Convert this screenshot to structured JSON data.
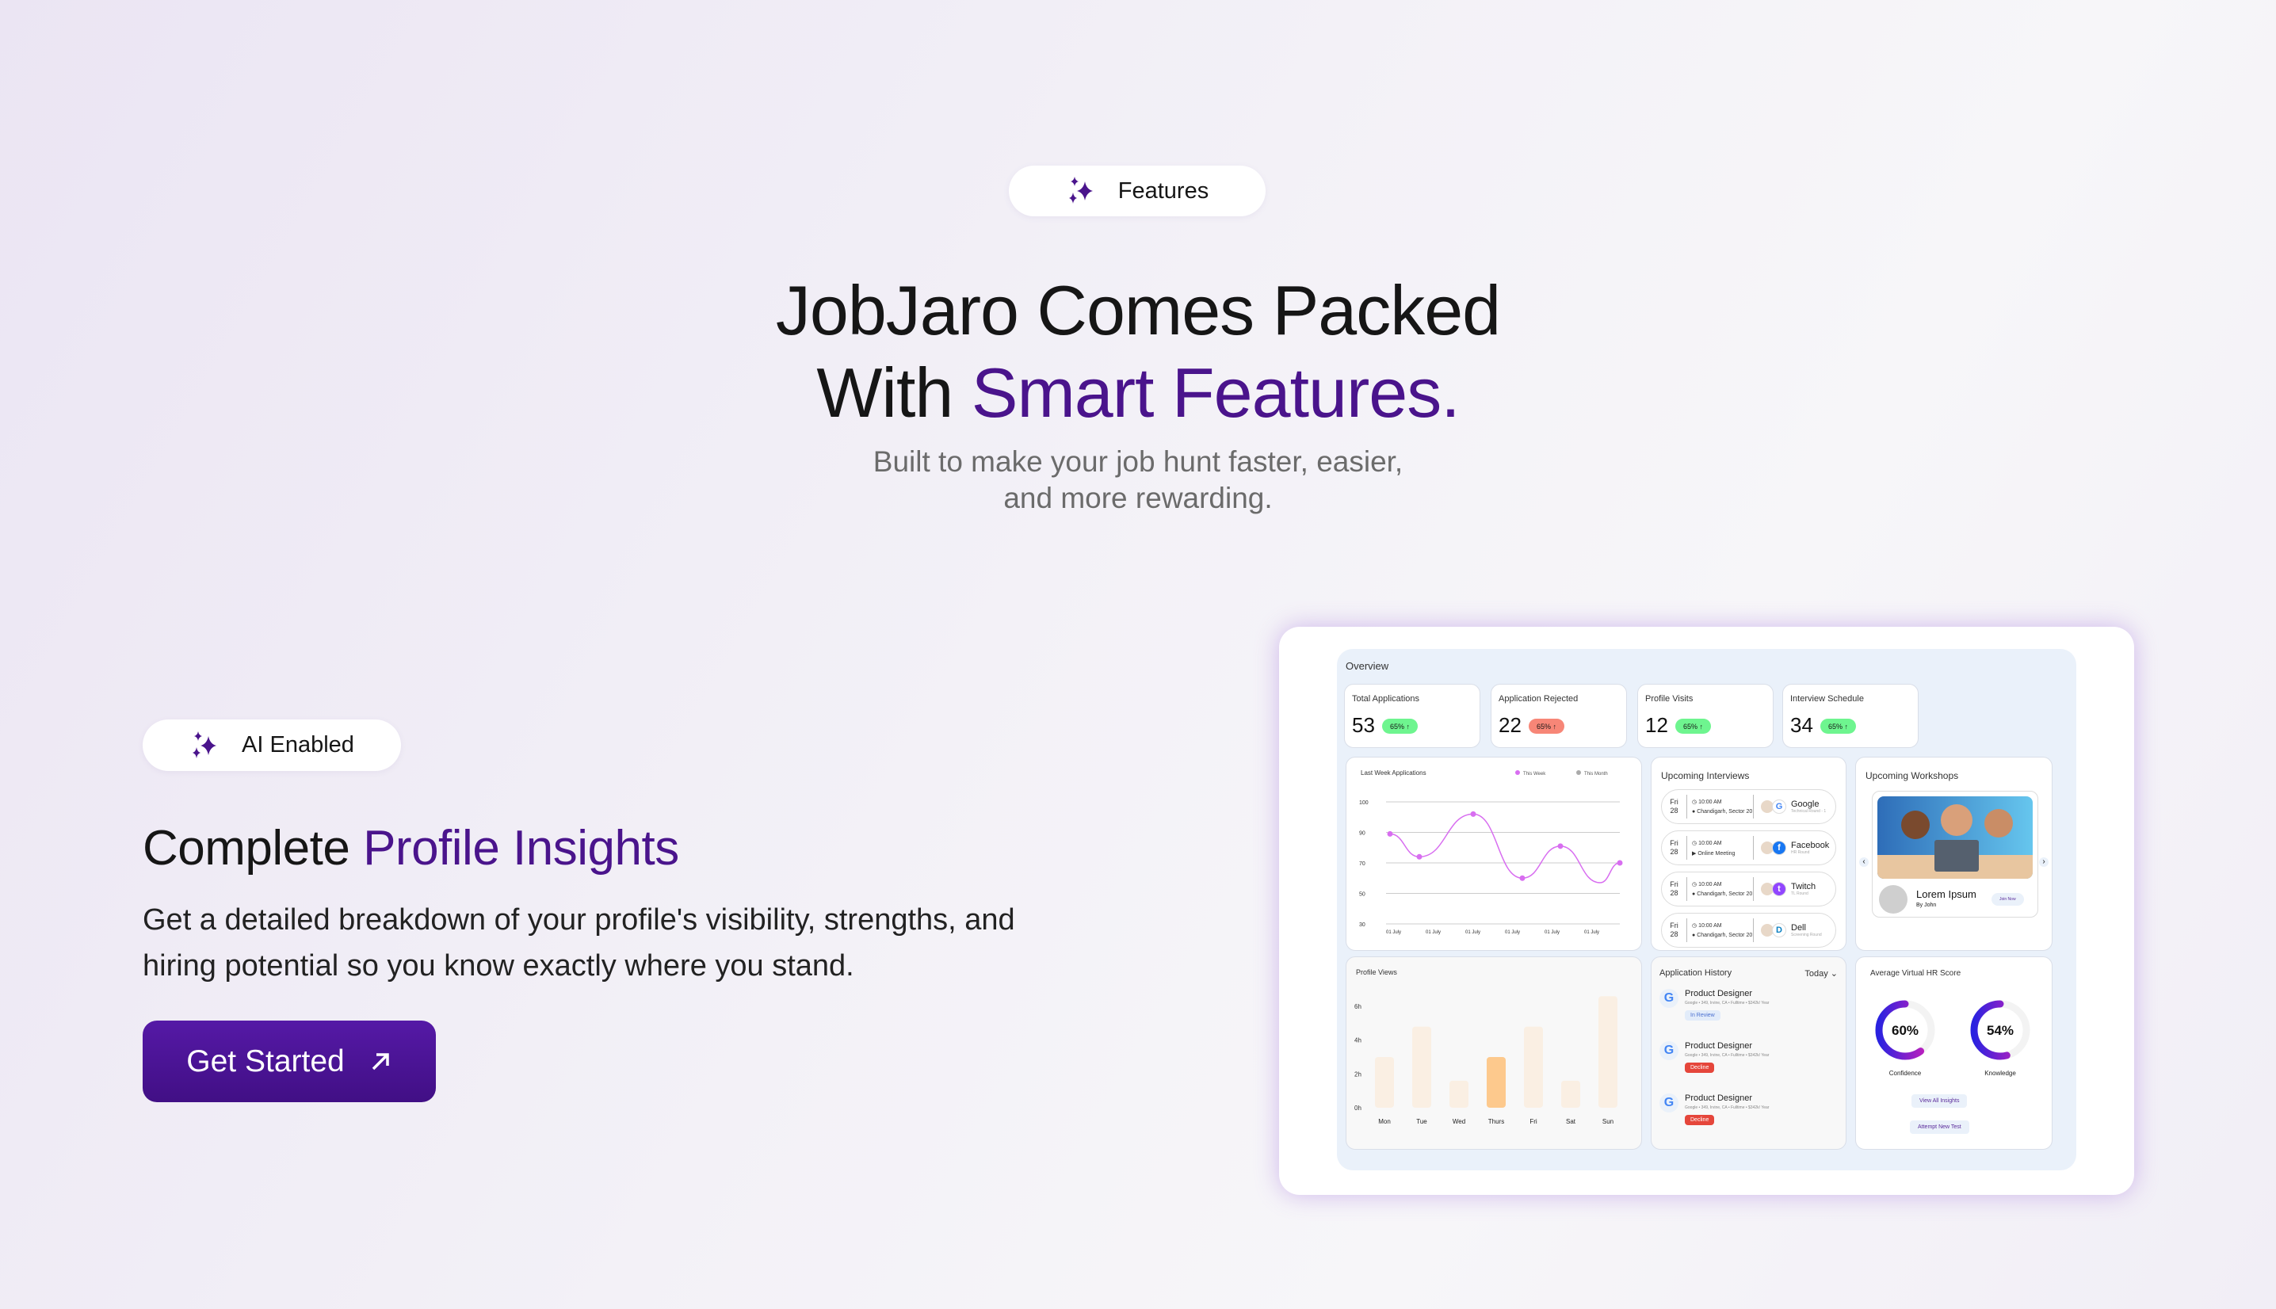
{
  "header": {
    "badge_label": "Features",
    "badge_icon": "sparkles-icon",
    "title_line1": "JobJaro Comes Packed",
    "title_line2_prefix": "With ",
    "title_line2_accent": "Smart Features.",
    "subtitle_line1": "Built to make your job hunt faster, easier,",
    "subtitle_line2": "and more rewarding."
  },
  "feature": {
    "badge_label": "AI Enabled",
    "title_prefix": "Complete ",
    "title_accent": "Profile Insights",
    "description": "Get a detailed breakdown of your profile's visibility, strengths, and hiring potential so you know exactly where you stand.",
    "cta_label": "Get Started",
    "cta_icon": "arrow-up-right-icon"
  },
  "colors": {
    "accent": "#4a148c",
    "up_badge": "#6ef58f",
    "down_badge": "#f78677",
    "line": "#d86ef0",
    "bar": "#faefe3",
    "bar_highlight": "#fdc98d"
  },
  "dashboard": {
    "overview_label": "Overview",
    "stats": [
      {
        "label": "Total Applications",
        "value": "53",
        "change": "65% ↑",
        "tone": "g"
      },
      {
        "label": "Application Rejected",
        "value": "22",
        "change": "65% ↑",
        "tone": "r"
      },
      {
        "label": "Profile Visits",
        "value": "12",
        "change": "65% ↑",
        "tone": "g"
      },
      {
        "label": "Interview Schedule",
        "value": "34",
        "change": "65% ↑",
        "tone": "g"
      }
    ],
    "upcoming_interviews": {
      "title": "Upcoming Interviews",
      "items": [
        {
          "day": "Fri",
          "date": "28",
          "time": "10:00 AM",
          "location": "Chandigarh, Sector 20",
          "company": "Google",
          "round": "Technical Round - 1"
        },
        {
          "day": "Fri",
          "date": "28",
          "time": "10:00 AM",
          "location": "Online Meeting",
          "company": "Facebook",
          "round": "HR Round"
        },
        {
          "day": "Fri",
          "date": "28",
          "time": "10:00 AM",
          "location": "Chandigarh, Sector 20",
          "company": "Twitch",
          "round": "TL Round"
        },
        {
          "day": "Fri",
          "date": "28",
          "time": "10:00 AM",
          "location": "Chandigarh, Sector 20",
          "company": "Dell",
          "round": "Screening Round"
        }
      ]
    },
    "workshops": {
      "title": "Upcoming Workshops",
      "name": "Lorem Ipsum",
      "by": "By John",
      "join_label": "Join Now"
    },
    "application_history": {
      "title": "Application History",
      "filter": "Today",
      "items": [
        {
          "role": "Product Designer",
          "meta": "Google • 349, Irvine, CA • Fulltime • $342k/ Year",
          "status": "In Review",
          "kind": "rev"
        },
        {
          "role": "Product Designer",
          "meta": "Google • 349, Irvine, CA • Fulltime • $342k/ Year",
          "status": "Decline",
          "kind": "dec"
        },
        {
          "role": "Product Designer",
          "meta": "Google • 349, Irvine, CA • Fulltime • $342k/ Year",
          "status": "Decline",
          "kind": "dec"
        }
      ]
    },
    "hr_score": {
      "title": "Average Virtual HR Score",
      "scores": [
        {
          "label": "Confidence",
          "value": 60,
          "text": "60%"
        },
        {
          "label": "Knowledge",
          "value": 54,
          "text": "54%"
        }
      ],
      "view_label": "View All Insights",
      "attempt_label": "Attempt New Test"
    }
  },
  "chart_data": [
    {
      "type": "line",
      "title": "Last Week Applications",
      "legend": [
        "This Week",
        "This Month"
      ],
      "legend_placement": "top-right",
      "y_ticks": [
        "100",
        "90",
        "70",
        "50",
        "30"
      ],
      "x_ticks": [
        "01 July",
        "01 July",
        "01 July",
        "01 July",
        "01 July",
        "01 July"
      ],
      "grid": true,
      "series": [
        {
          "name": "This Week",
          "values": [
            89,
            74,
            96,
            60,
            81,
            57,
            70
          ]
        }
      ]
    },
    {
      "type": "bar",
      "title": "Profile Views",
      "categories": [
        "Mon",
        "Tue",
        "Wed",
        "Thurs",
        "Fri",
        "Sat",
        "Sun"
      ],
      "values": [
        3,
        4.8,
        1.6,
        3,
        4.8,
        1.6,
        6.6
      ],
      "highlight": "Thurs",
      "y_ticks": [
        "6h",
        "4h",
        "2h",
        "0h"
      ],
      "ylim": [
        0,
        6.6
      ]
    }
  ]
}
